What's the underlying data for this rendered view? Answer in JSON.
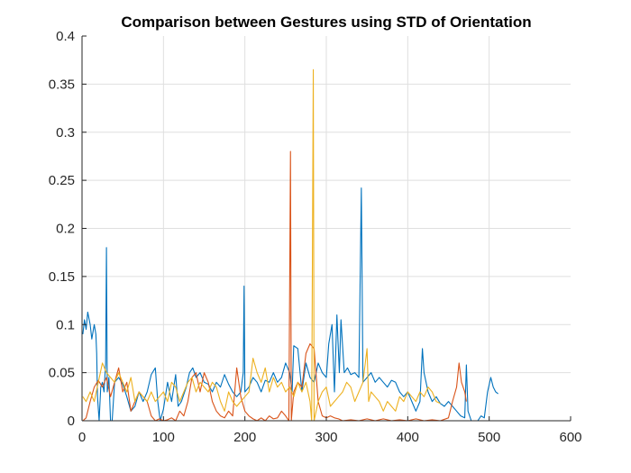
{
  "chart_data": {
    "type": "line",
    "title": "Comparison between Gestures using STD of Orientation",
    "xlabel": "",
    "ylabel": "",
    "xlim": [
      0,
      600
    ],
    "ylim": [
      0,
      0.4
    ],
    "x_ticks": [
      0,
      100,
      200,
      300,
      400,
      500,
      600
    ],
    "x_tick_labels": [
      "0",
      "100",
      "200",
      "300",
      "400",
      "500",
      "600"
    ],
    "y_ticks": [
      0,
      0.05,
      0.1,
      0.15,
      0.2,
      0.25,
      0.3,
      0.35,
      0.4
    ],
    "y_tick_labels": [
      "0",
      "0.05",
      "0.1",
      "0.15",
      "0.2",
      "0.25",
      "0.3",
      "0.35",
      "0.4"
    ],
    "grid": true,
    "legend": "none",
    "series": [
      {
        "color": "#0072BD",
        "points": [
          [
            1,
            0.09
          ],
          [
            3,
            0.105
          ],
          [
            5,
            0.095
          ],
          [
            7,
            0.113
          ],
          [
            10,
            0.1
          ],
          [
            12,
            0.085
          ],
          [
            15,
            0.1
          ],
          [
            17,
            0.09
          ],
          [
            18,
            0.07
          ],
          [
            19,
            0.025
          ],
          [
            21,
            0.0
          ],
          [
            23,
            0.035
          ],
          [
            25,
            0.04
          ],
          [
            27,
            0.03
          ],
          [
            29,
            0.06
          ],
          [
            30,
            0.18
          ],
          [
            31,
            0.03
          ],
          [
            33,
            0.045
          ],
          [
            35,
            0.0
          ],
          [
            37,
            0.0
          ],
          [
            40,
            0.04
          ],
          [
            45,
            0.045
          ],
          [
            50,
            0.038
          ],
          [
            55,
            0.025
          ],
          [
            60,
            0.01
          ],
          [
            65,
            0.015
          ],
          [
            70,
            0.03
          ],
          [
            75,
            0.02
          ],
          [
            80,
            0.03
          ],
          [
            85,
            0.048
          ],
          [
            90,
            0.055
          ],
          [
            93,
            0.02
          ],
          [
            96,
            0.0
          ],
          [
            100,
            0.012
          ],
          [
            105,
            0.04
          ],
          [
            110,
            0.02
          ],
          [
            115,
            0.048
          ],
          [
            118,
            0.015
          ],
          [
            122,
            0.02
          ],
          [
            128,
            0.035
          ],
          [
            132,
            0.05
          ],
          [
            136,
            0.055
          ],
          [
            140,
            0.045
          ],
          [
            145,
            0.05
          ],
          [
            150,
            0.04
          ],
          [
            155,
            0.038
          ],
          [
            160,
            0.03
          ],
          [
            165,
            0.04
          ],
          [
            170,
            0.035
          ],
          [
            175,
            0.048
          ],
          [
            180,
            0.038
          ],
          [
            185,
            0.03
          ],
          [
            190,
            0.025
          ],
          [
            195,
            0.03
          ],
          [
            198,
            0.05
          ],
          [
            199,
            0.14
          ],
          [
            200,
            0.03
          ],
          [
            205,
            0.035
          ],
          [
            210,
            0.045
          ],
          [
            215,
            0.04
          ],
          [
            220,
            0.03
          ],
          [
            225,
            0.042
          ],
          [
            230,
            0.04
          ],
          [
            235,
            0.05
          ],
          [
            240,
            0.04
          ],
          [
            245,
            0.045
          ],
          [
            250,
            0.06
          ],
          [
            255,
            0.05
          ],
          [
            258,
            0.03
          ],
          [
            260,
            0.078
          ],
          [
            265,
            0.075
          ],
          [
            270,
            0.03
          ],
          [
            275,
            0.06
          ],
          [
            280,
            0.045
          ],
          [
            285,
            0.04
          ],
          [
            290,
            0.06
          ],
          [
            295,
            0.05
          ],
          [
            300,
            0.045
          ],
          [
            303,
            0.08
          ],
          [
            307,
            0.1
          ],
          [
            310,
            0.03
          ],
          [
            313,
            0.11
          ],
          [
            316,
            0.05
          ],
          [
            318,
            0.105
          ],
          [
            322,
            0.05
          ],
          [
            326,
            0.055
          ],
          [
            330,
            0.048
          ],
          [
            335,
            0.05
          ],
          [
            340,
            0.045
          ],
          [
            343,
            0.242
          ],
          [
            345,
            0.04
          ],
          [
            350,
            0.045
          ],
          [
            355,
            0.05
          ],
          [
            360,
            0.04
          ],
          [
            365,
            0.045
          ],
          [
            370,
            0.04
          ],
          [
            375,
            0.035
          ],
          [
            380,
            0.042
          ],
          [
            385,
            0.04
          ],
          [
            390,
            0.03
          ],
          [
            395,
            0.025
          ],
          [
            400,
            0.03
          ],
          [
            405,
            0.02
          ],
          [
            410,
            0.01
          ],
          [
            415,
            0.02
          ],
          [
            418,
            0.075
          ],
          [
            420,
            0.05
          ],
          [
            425,
            0.03
          ],
          [
            430,
            0.02
          ],
          [
            435,
            0.025
          ],
          [
            440,
            0.018
          ],
          [
            445,
            0.015
          ],
          [
            450,
            0.02
          ],
          [
            455,
            0.015
          ],
          [
            460,
            0.01
          ],
          [
            465,
            0.005
          ],
          [
            470,
            0.003
          ],
          [
            472,
            0.058
          ],
          [
            474,
            0.01
          ],
          [
            478,
            0.0
          ],
          [
            482,
            0.0
          ],
          [
            486,
            0.0
          ],
          [
            490,
            0.005
          ],
          [
            494,
            0.003
          ],
          [
            498,
            0.03
          ],
          [
            502,
            0.045
          ],
          [
            505,
            0.035
          ],
          [
            508,
            0.03
          ],
          [
            511,
            0.028
          ]
        ]
      },
      {
        "color": "#D95319",
        "points": [
          [
            1,
            0.0
          ],
          [
            5,
            0.003
          ],
          [
            10,
            0.02
          ],
          [
            15,
            0.035
          ],
          [
            20,
            0.042
          ],
          [
            25,
            0.035
          ],
          [
            30,
            0.045
          ],
          [
            35,
            0.025
          ],
          [
            40,
            0.04
          ],
          [
            45,
            0.055
          ],
          [
            50,
            0.03
          ],
          [
            55,
            0.04
          ],
          [
            60,
            0.01
          ],
          [
            65,
            0.02
          ],
          [
            70,
            0.03
          ],
          [
            75,
            0.025
          ],
          [
            80,
            0.02
          ],
          [
            85,
            0.005
          ],
          [
            90,
            0.0
          ],
          [
            95,
            0.002
          ],
          [
            100,
            0.0
          ],
          [
            105,
            0.001
          ],
          [
            110,
            0.003
          ],
          [
            115,
            0.0
          ],
          [
            120,
            0.01
          ],
          [
            125,
            0.005
          ],
          [
            130,
            0.02
          ],
          [
            135,
            0.045
          ],
          [
            140,
            0.05
          ],
          [
            145,
            0.03
          ],
          [
            150,
            0.05
          ],
          [
            155,
            0.04
          ],
          [
            160,
            0.02
          ],
          [
            165,
            0.01
          ],
          [
            170,
            0.005
          ],
          [
            175,
            0.003
          ],
          [
            180,
            0.01
          ],
          [
            185,
            0.005
          ],
          [
            190,
            0.055
          ],
          [
            195,
            0.025
          ],
          [
            200,
            0.01
          ],
          [
            205,
            0.005
          ],
          [
            210,
            0.002
          ],
          [
            215,
            0.0
          ],
          [
            220,
            0.003
          ],
          [
            225,
            0.0
          ],
          [
            230,
            0.005
          ],
          [
            235,
            0.002
          ],
          [
            240,
            0.003
          ],
          [
            245,
            0.01
          ],
          [
            250,
            0.005
          ],
          [
            254,
            0.0
          ],
          [
            256,
            0.28
          ],
          [
            257,
            0.0
          ],
          [
            260,
            0.03
          ],
          [
            265,
            0.04
          ],
          [
            270,
            0.035
          ],
          [
            275,
            0.07
          ],
          [
            280,
            0.08
          ],
          [
            285,
            0.075
          ],
          [
            290,
            0.02
          ],
          [
            295,
            0.005
          ],
          [
            300,
            0.003
          ],
          [
            305,
            0.005
          ],
          [
            310,
            0.003
          ],
          [
            315,
            0.002
          ],
          [
            320,
            0.0
          ],
          [
            330,
            0.001
          ],
          [
            340,
            0.0
          ],
          [
            350,
            0.002
          ],
          [
            360,
            0.0
          ],
          [
            370,
            0.002
          ],
          [
            380,
            0.0
          ],
          [
            390,
            0.001
          ],
          [
            400,
            0.0
          ],
          [
            410,
            0.002
          ],
          [
            420,
            0.0
          ],
          [
            430,
            0.001
          ],
          [
            440,
            0.0
          ],
          [
            450,
            0.003
          ],
          [
            455,
            0.02
          ],
          [
            460,
            0.035
          ],
          [
            463,
            0.06
          ],
          [
            466,
            0.04
          ],
          [
            470,
            0.03
          ],
          [
            472,
            0.02
          ]
        ]
      },
      {
        "color": "#EDB120",
        "points": [
          [
            1,
            0.025
          ],
          [
            5,
            0.02
          ],
          [
            10,
            0.03
          ],
          [
            15,
            0.02
          ],
          [
            20,
            0.04
          ],
          [
            25,
            0.06
          ],
          [
            30,
            0.05
          ],
          [
            35,
            0.045
          ],
          [
            40,
            0.04
          ],
          [
            45,
            0.05
          ],
          [
            50,
            0.04
          ],
          [
            55,
            0.03
          ],
          [
            60,
            0.045
          ],
          [
            65,
            0.02
          ],
          [
            70,
            0.03
          ],
          [
            75,
            0.025
          ],
          [
            80,
            0.02
          ],
          [
            85,
            0.03
          ],
          [
            90,
            0.02
          ],
          [
            95,
            0.025
          ],
          [
            100,
            0.03
          ],
          [
            105,
            0.02
          ],
          [
            110,
            0.04
          ],
          [
            115,
            0.035
          ],
          [
            120,
            0.02
          ],
          [
            125,
            0.03
          ],
          [
            130,
            0.04
          ],
          [
            135,
            0.045
          ],
          [
            140,
            0.03
          ],
          [
            145,
            0.04
          ],
          [
            150,
            0.035
          ],
          [
            155,
            0.03
          ],
          [
            160,
            0.04
          ],
          [
            165,
            0.035
          ],
          [
            170,
            0.02
          ],
          [
            175,
            0.01
          ],
          [
            180,
            0.03
          ],
          [
            185,
            0.02
          ],
          [
            190,
            0.015
          ],
          [
            195,
            0.02
          ],
          [
            200,
            0.025
          ],
          [
            205,
            0.03
          ],
          [
            210,
            0.065
          ],
          [
            215,
            0.05
          ],
          [
            220,
            0.04
          ],
          [
            225,
            0.055
          ],
          [
            230,
            0.03
          ],
          [
            235,
            0.045
          ],
          [
            240,
            0.035
          ],
          [
            245,
            0.04
          ],
          [
            250,
            0.03
          ],
          [
            255,
            0.035
          ],
          [
            260,
            0.025
          ],
          [
            265,
            0.04
          ],
          [
            270,
            0.03
          ],
          [
            275,
            0.04
          ],
          [
            280,
            0.02
          ],
          [
            282,
            0.0
          ],
          [
            284,
            0.365
          ],
          [
            285,
            0.0
          ],
          [
            290,
            0.02
          ],
          [
            295,
            0.03
          ],
          [
            300,
            0.035
          ],
          [
            305,
            0.015
          ],
          [
            310,
            0.02
          ],
          [
            315,
            0.025
          ],
          [
            320,
            0.03
          ],
          [
            325,
            0.04
          ],
          [
            330,
            0.035
          ],
          [
            335,
            0.02
          ],
          [
            340,
            0.03
          ],
          [
            345,
            0.04
          ],
          [
            350,
            0.075
          ],
          [
            352,
            0.02
          ],
          [
            355,
            0.03
          ],
          [
            360,
            0.025
          ],
          [
            365,
            0.02
          ],
          [
            370,
            0.01
          ],
          [
            375,
            0.02
          ],
          [
            380,
            0.015
          ],
          [
            385,
            0.01
          ],
          [
            390,
            0.025
          ],
          [
            395,
            0.02
          ],
          [
            400,
            0.03
          ],
          [
            405,
            0.025
          ],
          [
            410,
            0.02
          ],
          [
            415,
            0.03
          ],
          [
            420,
            0.025
          ],
          [
            425,
            0.035
          ],
          [
            430,
            0.03
          ],
          [
            435,
            0.02
          ],
          [
            440,
            0.018
          ]
        ]
      }
    ]
  }
}
